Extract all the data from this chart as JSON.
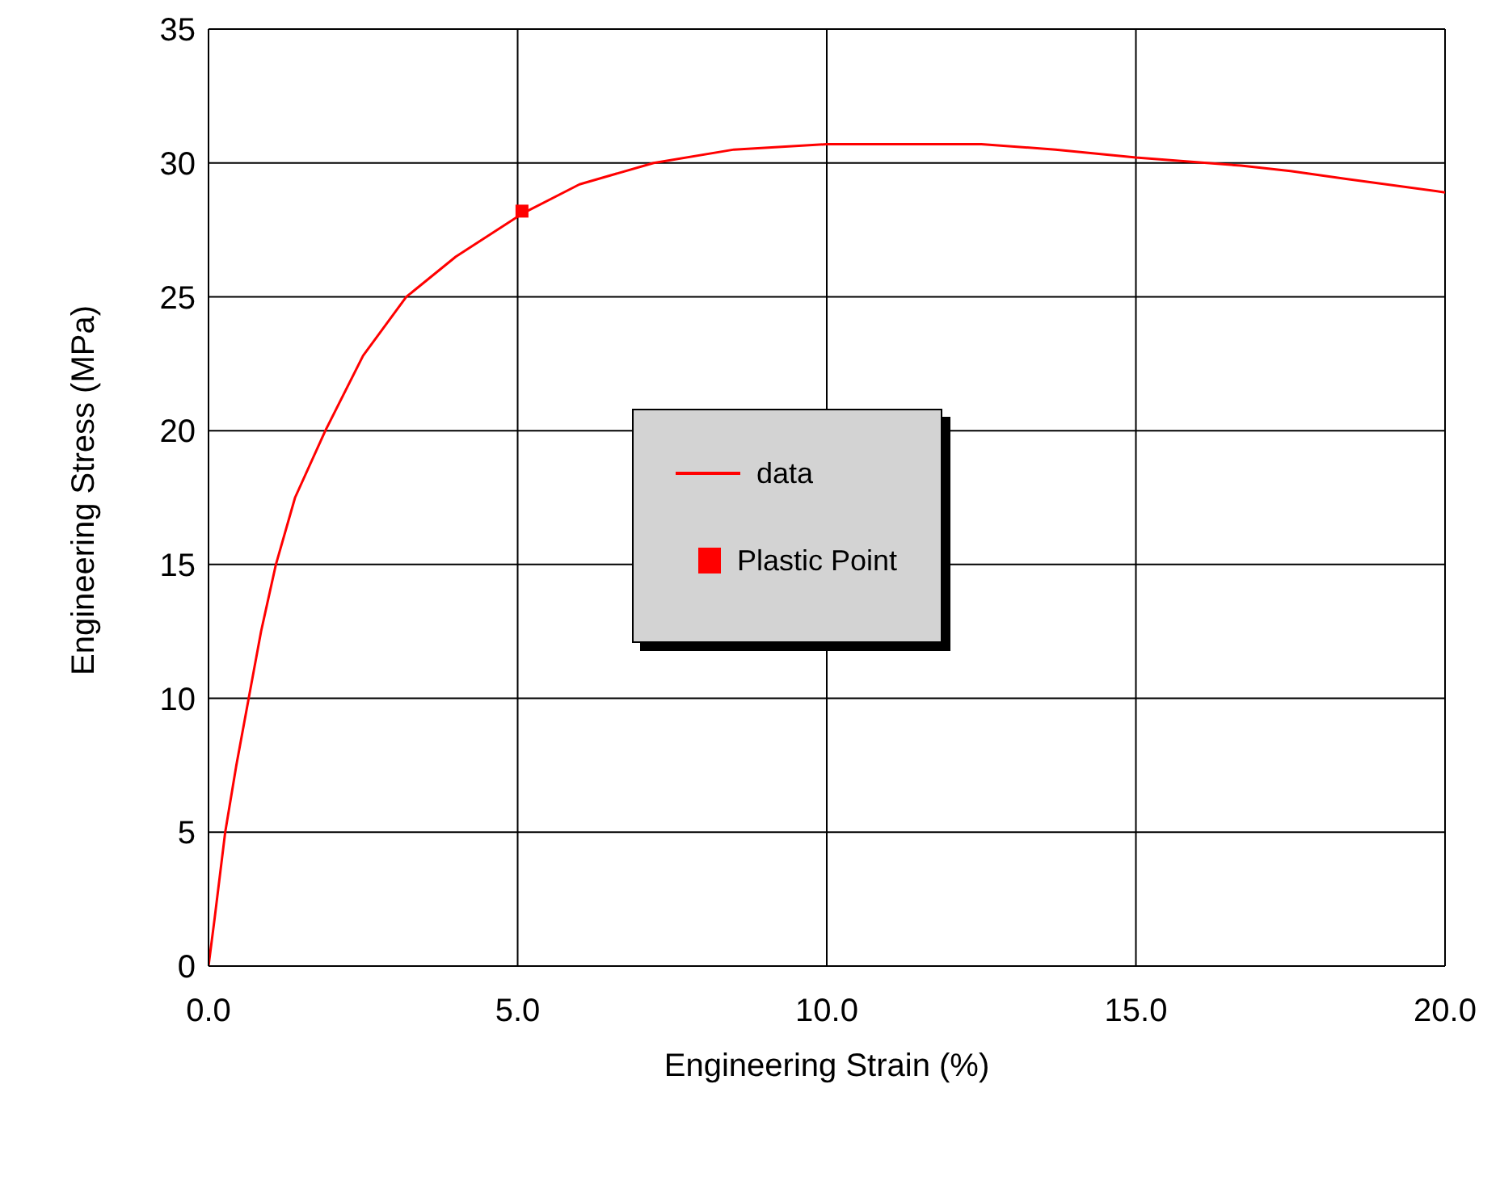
{
  "chart_data": {
    "type": "line",
    "xlabel": "Engineering Strain (%)",
    "ylabel": "Engineering Stress (MPa)",
    "series": [
      {
        "name": "data",
        "color": "#ff0000",
        "marker": "none",
        "x": [
          0,
          0.1,
          0.27,
          0.45,
          0.65,
          0.85,
          1.09,
          1.4,
          1.89,
          2.5,
          3.2,
          4.0,
          5.07,
          6.0,
          7.2,
          8.5,
          10.0,
          11.7,
          12.5,
          13.7,
          15.0,
          16.7,
          17.5,
          18.4,
          20.0
        ],
        "values": [
          0,
          1.8,
          5,
          7.5,
          10,
          12.5,
          15,
          17.5,
          20,
          22.8,
          25,
          26.5,
          28.1,
          29.2,
          30,
          30.5,
          30.7,
          30.7,
          30.7,
          30.5,
          30.2,
          29.9,
          29.7,
          29.4,
          28.9
        ]
      },
      {
        "name": "Plastic Point",
        "type": "scatter",
        "color": "#ff0000",
        "marker": "square",
        "x": [
          5.07
        ],
        "values": [
          28.2
        ]
      }
    ],
    "xlim": [
      0,
      20
    ],
    "xticks": [
      {
        "value": 0,
        "label": "0.0"
      },
      {
        "value": 5,
        "label": "5.0"
      },
      {
        "value": 10,
        "label": "10.0"
      },
      {
        "value": 15,
        "label": "15.0"
      },
      {
        "value": 20,
        "label": "20.0"
      }
    ],
    "ylim": [
      0,
      35
    ],
    "yticks": [
      0,
      5,
      10,
      15,
      20,
      25,
      30,
      35
    ],
    "grid": true,
    "legend": "center"
  }
}
